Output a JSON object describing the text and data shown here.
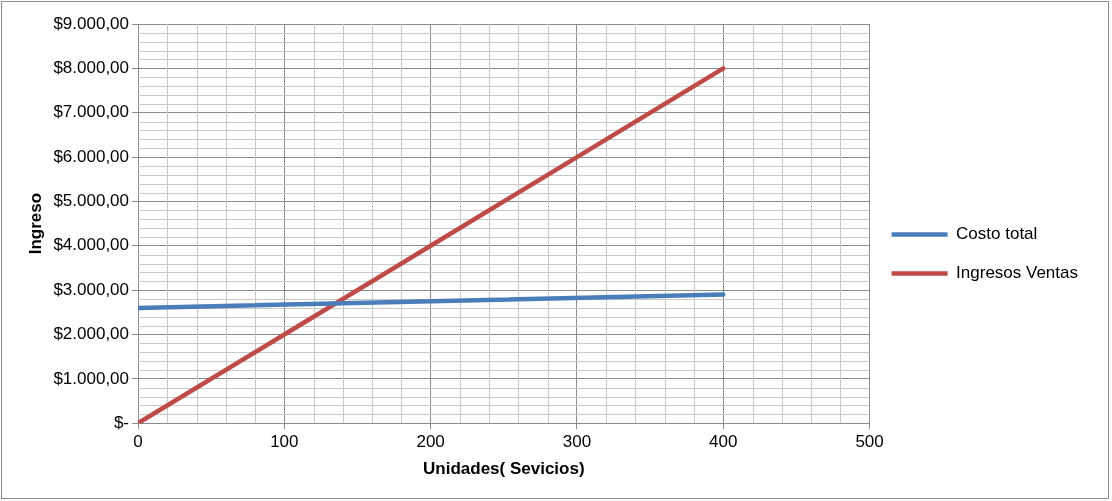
{
  "chart_data": {
    "type": "line",
    "xlabel": "Unidades( Sevicios)",
    "ylabel": "Ingreso",
    "x": [
      0,
      100,
      200,
      300,
      400
    ],
    "series": [
      {
        "name": "Costo total",
        "color": "#4a7ebb",
        "x": [
          0,
          400
        ],
        "values": [
          2600,
          2900
        ]
      },
      {
        "name": "Ingresos Ventas",
        "color": "#be4b48",
        "values": [
          0,
          2000,
          4000,
          6000,
          8000
        ]
      }
    ],
    "xlim": [
      0,
      500
    ],
    "xticks": [
      0,
      100,
      200,
      300,
      400,
      500
    ],
    "ylim": [
      0,
      9000
    ],
    "yticks": [
      {
        "value": 0,
        "label": "$-"
      },
      {
        "value": 1000,
        "label": "$1.000,00"
      },
      {
        "value": 2000,
        "label": "$2.000,00"
      },
      {
        "value": 3000,
        "label": "$3.000,00"
      },
      {
        "value": 4000,
        "label": "$4.000,00"
      },
      {
        "value": 5000,
        "label": "$5.000,00"
      },
      {
        "value": 6000,
        "label": "$6.000,00"
      },
      {
        "value": 7000,
        "label": "$7.000,00"
      },
      {
        "value": 8000,
        "label": "$8.000,00"
      },
      {
        "value": 9000,
        "label": "$9.000,00"
      }
    ],
    "grid": true,
    "legend": "right",
    "marker": "none",
    "line_style": "solid"
  }
}
